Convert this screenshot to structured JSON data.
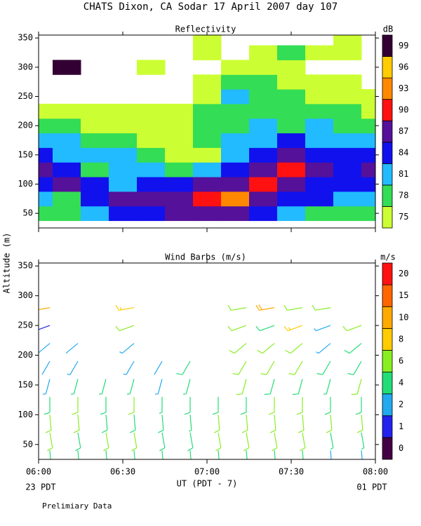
{
  "title": "CHATS Dixon, CA  Sodar  17 April 2007  day 107",
  "y_label": "Altitude (m)",
  "x_label": "UT  (PDT - 7)",
  "x_start_label": "23 PDT",
  "x_end_label": "01 PDT",
  "note": "Prelimiary Data",
  "chart_data": [
    {
      "type": "contour",
      "title": "Reflectivity",
      "xlim": [
        360,
        480
      ],
      "ylim": [
        25,
        355
      ],
      "xticks": [
        {
          "value": 360,
          "label": "06:00"
        },
        {
          "value": 390,
          "label": "06:30"
        },
        {
          "value": 420,
          "label": "07:00"
        },
        {
          "value": 450,
          "label": "07:30"
        },
        {
          "value": 480,
          "label": "08:00"
        }
      ],
      "yticks": [
        50,
        100,
        150,
        200,
        250,
        300,
        350
      ],
      "x": [
        360,
        370,
        380,
        390,
        400,
        410,
        420,
        430,
        440,
        450,
        460,
        470,
        480
      ],
      "y": [
        50,
        75,
        100,
        125,
        150,
        175,
        200,
        225,
        250,
        275,
        300,
        325,
        350
      ],
      "z": [
        [
          78,
          78,
          81,
          84,
          84,
          87,
          87,
          87,
          84,
          81,
          78,
          78,
          78
        ],
        [
          81,
          78,
          84,
          87,
          87,
          87,
          90,
          93,
          87,
          84,
          84,
          81,
          81
        ],
        [
          84,
          87,
          84,
          81,
          84,
          84,
          87,
          87,
          90,
          87,
          84,
          84,
          84
        ],
        [
          87,
          84,
          78,
          81,
          81,
          78,
          81,
          84,
          87,
          90,
          87,
          84,
          87
        ],
        [
          84,
          81,
          81,
          81,
          78,
          75,
          75,
          81,
          84,
          87,
          84,
          84,
          84
        ],
        [
          81,
          81,
          78,
          78,
          75,
          75,
          78,
          81,
          81,
          84,
          81,
          81,
          81
        ],
        [
          78,
          78,
          75,
          75,
          75,
          75,
          78,
          78,
          81,
          78,
          81,
          78,
          78
        ],
        [
          75,
          75,
          75,
          75,
          75,
          75,
          78,
          78,
          78,
          78,
          78,
          78,
          75
        ],
        [
          null,
          null,
          null,
          null,
          null,
          null,
          75,
          81,
          78,
          78,
          75,
          75,
          75
        ],
        [
          null,
          null,
          null,
          null,
          null,
          null,
          75,
          78,
          78,
          75,
          75,
          75,
          null
        ],
        [
          null,
          99,
          null,
          null,
          75,
          null,
          null,
          75,
          75,
          75,
          null,
          null,
          null
        ],
        [
          null,
          null,
          null,
          null,
          null,
          null,
          75,
          null,
          75,
          78,
          75,
          75,
          null
        ],
        [
          null,
          null,
          null,
          null,
          null,
          null,
          75,
          null,
          null,
          null,
          null,
          75,
          null
        ]
      ],
      "colorbar": {
        "label": "dB",
        "levels": [
          75,
          78,
          81,
          84,
          87,
          90,
          93,
          96,
          99
        ],
        "colors": [
          "#ccff33",
          "#33dd55",
          "#22bbff",
          "#1111ee",
          "#551199",
          "#ff1111",
          "#ff8800",
          "#ffcc00",
          "#330033"
        ]
      }
    },
    {
      "type": "barbs",
      "title": "Wind Barbs (m/s)",
      "xlim": [
        360,
        480
      ],
      "ylim": [
        25,
        355
      ],
      "xticks": [
        {
          "value": 360,
          "label": "06:00"
        },
        {
          "value": 390,
          "label": "06:30"
        },
        {
          "value": 420,
          "label": "07:00"
        },
        {
          "value": 450,
          "label": "07:30"
        },
        {
          "value": 480,
          "label": "08:00"
        }
      ],
      "yticks": [
        50,
        100,
        150,
        200,
        250,
        300,
        350
      ],
      "x": [
        364,
        364,
        364,
        364,
        364,
        364,
        364,
        364,
        364,
        374,
        374,
        374,
        374,
        374,
        374,
        374,
        384,
        384,
        384,
        384,
        384,
        394,
        394,
        394,
        394,
        394,
        394,
        394,
        394,
        394,
        404,
        404,
        404,
        404,
        404,
        404,
        414,
        414,
        414,
        414,
        414,
        414,
        424,
        424,
        424,
        424,
        434,
        434,
        434,
        434,
        434,
        434,
        434,
        434,
        434,
        444,
        444,
        444,
        444,
        444,
        444,
        444,
        444,
        444,
        454,
        454,
        454,
        454,
        454,
        454,
        454,
        454,
        454,
        464,
        464,
        464,
        464,
        464,
        464,
        464,
        464,
        464,
        475,
        475,
        475,
        475,
        475,
        475,
        475,
        475
      ],
      "y": [
        40,
        70,
        100,
        130,
        160,
        190,
        220,
        250,
        280,
        40,
        70,
        100,
        130,
        160,
        190,
        220,
        40,
        70,
        100,
        130,
        160,
        40,
        70,
        100,
        130,
        160,
        190,
        220,
        250,
        280,
        40,
        70,
        100,
        130,
        160,
        190,
        40,
        70,
        100,
        130,
        160,
        190,
        40,
        70,
        100,
        130,
        40,
        70,
        100,
        130,
        160,
        190,
        220,
        250,
        280,
        40,
        70,
        100,
        130,
        160,
        190,
        220,
        250,
        280,
        40,
        70,
        100,
        130,
        160,
        190,
        220,
        250,
        280,
        40,
        70,
        100,
        130,
        160,
        190,
        220,
        250,
        280,
        40,
        70,
        100,
        130,
        160,
        190,
        220,
        250
      ],
      "speed": [
        5,
        6,
        6,
        5,
        3,
        2,
        2,
        1,
        12,
        5,
        5,
        6,
        6,
        4,
        3,
        2,
        4,
        6,
        5,
        5,
        4,
        5,
        6,
        5,
        6,
        4,
        3,
        3,
        6,
        9,
        4,
        5,
        5,
        4,
        3,
        2,
        5,
        5,
        4,
        5,
        4,
        5,
        5,
        6,
        6,
        5,
        5,
        6,
        6,
        5,
        6,
        6,
        6,
        6,
        6,
        5,
        6,
        6,
        6,
        5,
        6,
        6,
        5,
        10,
        5,
        6,
        6,
        6,
        5,
        6,
        6,
        9,
        6,
        3,
        4,
        6,
        5,
        4,
        5,
        3,
        3,
        7,
        2,
        4,
        6,
        5,
        6,
        5,
        5,
        6
      ],
      "direction": [
        175,
        170,
        175,
        180,
        195,
        210,
        230,
        250,
        260,
        175,
        170,
        175,
        180,
        195,
        210,
        230,
        175,
        170,
        175,
        180,
        195,
        175,
        170,
        175,
        180,
        195,
        210,
        230,
        250,
        260,
        175,
        170,
        175,
        180,
        195,
        210,
        175,
        170,
        175,
        180,
        195,
        210,
        175,
        170,
        175,
        180,
        175,
        170,
        175,
        180,
        195,
        210,
        230,
        250,
        260,
        175,
        170,
        175,
        180,
        195,
        210,
        230,
        250,
        260,
        175,
        170,
        175,
        180,
        195,
        210,
        230,
        250,
        260,
        175,
        170,
        175,
        180,
        195,
        210,
        230,
        250,
        260,
        175,
        170,
        175,
        180,
        195,
        210,
        230,
        250
      ],
      "colorbar": {
        "label": "m/s",
        "levels": [
          0,
          1,
          2,
          4,
          6,
          8,
          10,
          15,
          20
        ],
        "colors": [
          "#440044",
          "#2222ee",
          "#22aaee",
          "#22dd77",
          "#88ee22",
          "#ffcc00",
          "#ffaa00",
          "#ff6600",
          "#ff1111"
        ]
      }
    }
  ]
}
